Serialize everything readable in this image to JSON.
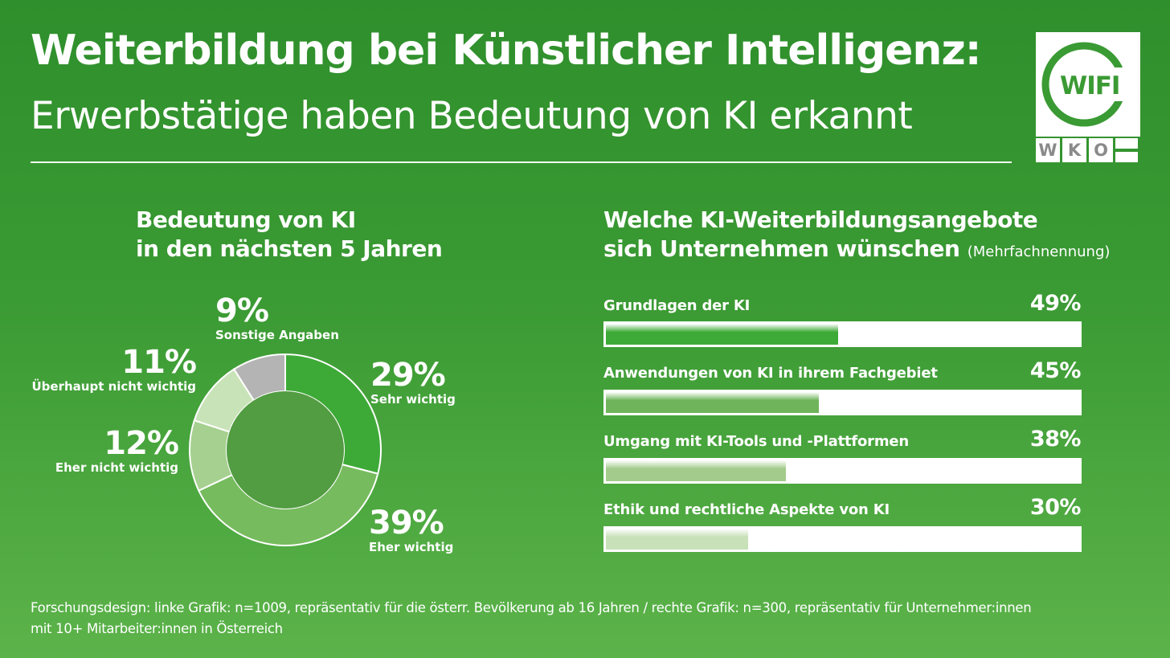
{
  "header": {
    "title": "Weiterbildung bei Künstlicher Intelligenz:",
    "subtitle": "Erwerbstätige haben Bedeutung von KI erkannt"
  },
  "logo": {
    "brand": "WIFI",
    "letters": [
      "W",
      "K",
      "O"
    ]
  },
  "colors": {
    "background": "#3a9a33",
    "segment_sehr_wichtig": "#3daa37",
    "segment_eher_wichtig": "#76bb5e",
    "segment_eher_nicht_wichtig": "#a6d08f",
    "segment_ueberhaupt_nicht": "#c9e3b8",
    "segment_sonstige": "#b4b4b4",
    "donut_center": "#529c42",
    "logo_green": "#3a9a33",
    "logo_gray": "#8a8a8a"
  },
  "chart_data": [
    {
      "type": "pie",
      "title_lines": [
        "Bedeutung von KI",
        "in den nächsten 5 Jahren"
      ],
      "unit": "%",
      "segments": [
        {
          "label": "Sehr wichtig",
          "value": 29,
          "display": "29%",
          "color": "#3daa37"
        },
        {
          "label": "Eher wichtig",
          "value": 39,
          "display": "39%",
          "color": "#76bb5e"
        },
        {
          "label": "Eher nicht wichtig",
          "value": 12,
          "display": "12%",
          "color": "#a6d08f"
        },
        {
          "label": "Überhaupt nicht wichtig",
          "value": 11,
          "display": "11%",
          "color": "#c9e3b8"
        },
        {
          "label": "Sonstige Angaben",
          "value": 9,
          "display": "9%",
          "color": "#b4b4b4"
        }
      ]
    },
    {
      "type": "bar",
      "orientation": "horizontal",
      "title_lines": [
        "Welche KI-Weiterbildungsangebote",
        "sich Unternehmen wünschen"
      ],
      "note": "(Mehrfachnennung)",
      "xlim": [
        0,
        100
      ],
      "unit": "%",
      "categories": [
        "Grundlagen der KI",
        "Anwendungen von KI in ihrem Fachgebiet",
        "Umgang mit KI-Tools und -Plattformen",
        "Ethik und rechtliche Aspekte von KI"
      ],
      "values": [
        49,
        45,
        38,
        30
      ],
      "display": [
        "49%",
        "45%",
        "38%",
        "30%"
      ],
      "colors": [
        "#3daa37",
        "#6fb45a",
        "#a3cc8c",
        "#c8e1b8"
      ]
    }
  ],
  "footnote": {
    "line1": "Forschungsdesign: linke Grafik: n=1009, repräsentativ für die österr. Bevölkerung ab 16 Jahren / rechte Grafik: n=300, repräsentativ für Unternehmer:innen",
    "line2": "mit 10+ Mitarbeiter:innen in Österreich"
  }
}
